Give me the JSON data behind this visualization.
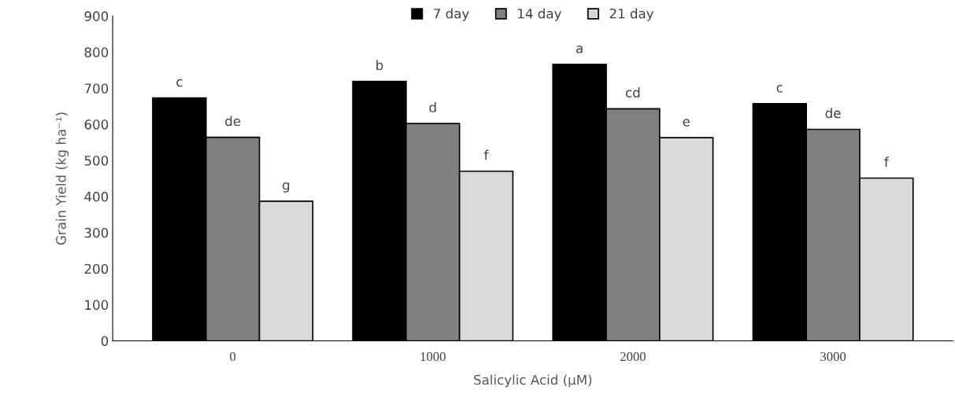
{
  "chart_data": {
    "type": "bar",
    "xlabel": "Salicylic Acid (µM)",
    "ylabel": "Grain Yield (kg ha⁻¹)",
    "categories": [
      "0",
      "1000",
      "2000",
      "3000"
    ],
    "series": [
      {
        "name": "7 day",
        "color": "#000000",
        "values": [
          673,
          719,
          766,
          657
        ],
        "value_labels": [
          "c",
          "b",
          "a",
          "c"
        ]
      },
      {
        "name": "14 day",
        "color": "#808080",
        "values": [
          564,
          602,
          643,
          586
        ],
        "value_labels": [
          "de",
          "d",
          "cd",
          "de"
        ]
      },
      {
        "name": "21 day",
        "color": "#d9d9d9",
        "values": [
          387,
          470,
          563,
          451
        ],
        "value_labels": [
          "g",
          "f",
          "e",
          "f"
        ]
      }
    ],
    "ylim": [
      0,
      900
    ],
    "yticks": [
      0,
      100,
      200,
      300,
      400,
      500,
      600,
      700,
      800,
      900
    ],
    "grid": false,
    "legend": "top"
  }
}
